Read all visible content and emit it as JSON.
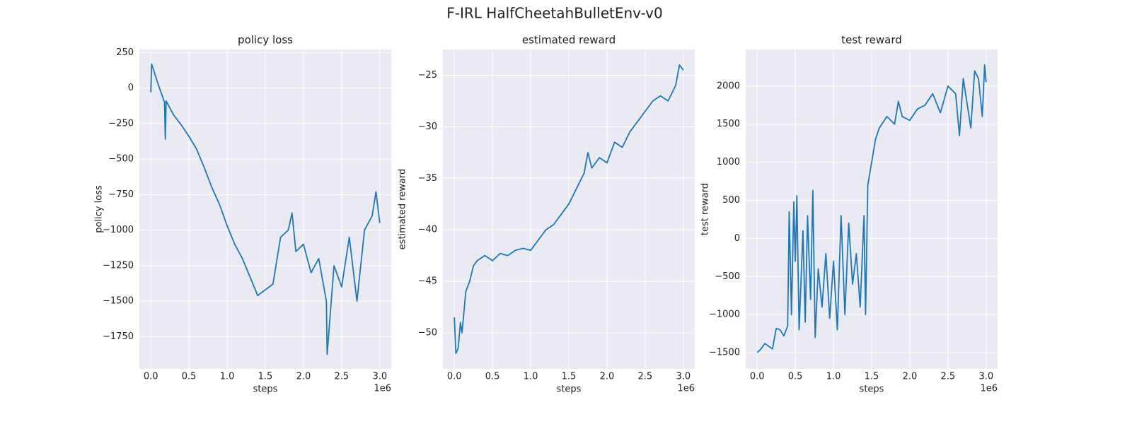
{
  "title": "F-IRL HalfCheetahBulletEnv-v0",
  "chart_data": [
    {
      "type": "line",
      "title": "policy loss",
      "xlabel": "steps",
      "ylabel": "policy loss",
      "x_offset_label": "1e6",
      "x": [
        0,
        0.01,
        0.1,
        0.18,
        0.19,
        0.2,
        0.3,
        0.4,
        0.5,
        0.6,
        0.7,
        0.8,
        0.9,
        1.0,
        1.1,
        1.2,
        1.3,
        1.4,
        1.5,
        1.6,
        1.7,
        1.8,
        1.85,
        1.9,
        2.0,
        2.1,
        2.2,
        2.3,
        2.31,
        2.4,
        2.5,
        2.6,
        2.7,
        2.8,
        2.9,
        2.95,
        3.0
      ],
      "values": [
        -30,
        170,
        20,
        -100,
        -360,
        -90,
        -190,
        -260,
        -340,
        -430,
        -560,
        -700,
        -820,
        -970,
        -1100,
        -1200,
        -1330,
        -1460,
        -1420,
        -1380,
        -1050,
        -1000,
        -880,
        -1150,
        -1100,
        -1300,
        -1200,
        -1500,
        -1875,
        -1250,
        -1400,
        -1050,
        -1500,
        -1000,
        -900,
        -730,
        -950
      ],
      "color": "#1f77b4",
      "grid": true,
      "xlim": [
        -0.15,
        3.15
      ],
      "ylim": [
        -1977,
        272
      ],
      "xticks": [
        {
          "value": 0,
          "label": "0.0"
        },
        0.5,
        {
          "value": 1,
          "label": "1.0"
        },
        1.5,
        {
          "value": 2,
          "label": "2.0"
        },
        2.5,
        {
          "value": 3,
          "label": "3.0"
        }
      ],
      "yticks": [
        {
          "value": -1750,
          "label": "−1750"
        },
        {
          "value": -1500,
          "label": "−1500"
        },
        {
          "value": -1250,
          "label": "−1250"
        },
        {
          "value": -1000,
          "label": "−1000"
        },
        {
          "value": -750,
          "label": "−750"
        },
        {
          "value": -500,
          "label": "−500"
        },
        {
          "value": -250,
          "label": "−250"
        },
        0,
        250
      ]
    },
    {
      "type": "line",
      "title": "estimated reward",
      "xlabel": "steps",
      "ylabel": "estimated reward",
      "x_offset_label": "1e6",
      "x": [
        0,
        0.02,
        0.05,
        0.08,
        0.1,
        0.15,
        0.2,
        0.25,
        0.3,
        0.4,
        0.5,
        0.6,
        0.7,
        0.8,
        0.9,
        1.0,
        1.1,
        1.2,
        1.3,
        1.4,
        1.5,
        1.6,
        1.7,
        1.75,
        1.8,
        1.9,
        2.0,
        2.1,
        2.2,
        2.3,
        2.4,
        2.5,
        2.6,
        2.7,
        2.8,
        2.9,
        2.95,
        3.0
      ],
      "values": [
        -48.5,
        -52,
        -51.5,
        -49,
        -50,
        -46,
        -45,
        -43.5,
        -43,
        -42.5,
        -43,
        -42.3,
        -42.5,
        -42,
        -41.8,
        -42,
        -41,
        -40,
        -39.5,
        -38.5,
        -37.5,
        -36,
        -34.5,
        -32.5,
        -34,
        -33,
        -33.5,
        -31.5,
        -32,
        -30.5,
        -29.5,
        -28.5,
        -27.5,
        -27,
        -27.5,
        -26,
        -24,
        -24.5
      ],
      "color": "#1f77b4",
      "grid": true,
      "xlim": [
        -0.15,
        3.15
      ],
      "ylim": [
        -53.5,
        -22.5
      ],
      "xticks": [
        {
          "value": 0,
          "label": "0.0"
        },
        0.5,
        {
          "value": 1,
          "label": "1.0"
        },
        1.5,
        {
          "value": 2,
          "label": "2.0"
        },
        2.5,
        {
          "value": 3,
          "label": "3.0"
        }
      ],
      "yticks": [
        {
          "value": -50,
          "label": "−50"
        },
        {
          "value": -45,
          "label": "−45"
        },
        {
          "value": -40,
          "label": "−40"
        },
        {
          "value": -35,
          "label": "−35"
        },
        {
          "value": -30,
          "label": "−30"
        },
        {
          "value": -25,
          "label": "−25"
        }
      ]
    },
    {
      "type": "line",
      "title": "test reward",
      "xlabel": "steps",
      "ylabel": "test reward",
      "x_offset_label": "1e6",
      "x": [
        0,
        0.05,
        0.1,
        0.2,
        0.25,
        0.3,
        0.35,
        0.4,
        0.42,
        0.45,
        0.48,
        0.5,
        0.52,
        0.55,
        0.6,
        0.63,
        0.66,
        0.7,
        0.73,
        0.76,
        0.8,
        0.85,
        0.9,
        0.95,
        1.0,
        1.05,
        1.1,
        1.15,
        1.2,
        1.25,
        1.3,
        1.35,
        1.4,
        1.42,
        1.45,
        1.5,
        1.55,
        1.6,
        1.7,
        1.8,
        1.85,
        1.9,
        2.0,
        2.1,
        2.2,
        2.3,
        2.4,
        2.5,
        2.6,
        2.65,
        2.7,
        2.8,
        2.85,
        2.9,
        2.95,
        2.98,
        3.0
      ],
      "values": [
        -1500,
        -1450,
        -1380,
        -1450,
        -1180,
        -1200,
        -1280,
        -1150,
        350,
        -1000,
        480,
        -300,
        560,
        -1200,
        100,
        -1100,
        300,
        -800,
        630,
        -1300,
        -400,
        -900,
        -200,
        -1050,
        -300,
        -1200,
        300,
        -1000,
        200,
        -600,
        -200,
        -900,
        300,
        -1000,
        700,
        1000,
        1300,
        1450,
        1600,
        1500,
        1800,
        1600,
        1550,
        1700,
        1750,
        1900,
        1650,
        2000,
        1900,
        1350,
        2100,
        1450,
        2200,
        2100,
        1600,
        2280,
        2050
      ],
      "color": "#1f77b4",
      "grid": true,
      "xlim": [
        -0.15,
        3.15
      ],
      "ylim": [
        -1713,
        2481
      ],
      "xticks": [
        {
          "value": 0,
          "label": "0.0"
        },
        0.5,
        {
          "value": 1,
          "label": "1.0"
        },
        1.5,
        {
          "value": 2,
          "label": "2.0"
        },
        2.5,
        {
          "value": 3,
          "label": "3.0"
        }
      ],
      "yticks": [
        {
          "value": -1500,
          "label": "−1500"
        },
        {
          "value": -1000,
          "label": "−1000"
        },
        {
          "value": -500,
          "label": "−500"
        },
        0,
        500,
        1000,
        1500,
        2000
      ]
    }
  ]
}
